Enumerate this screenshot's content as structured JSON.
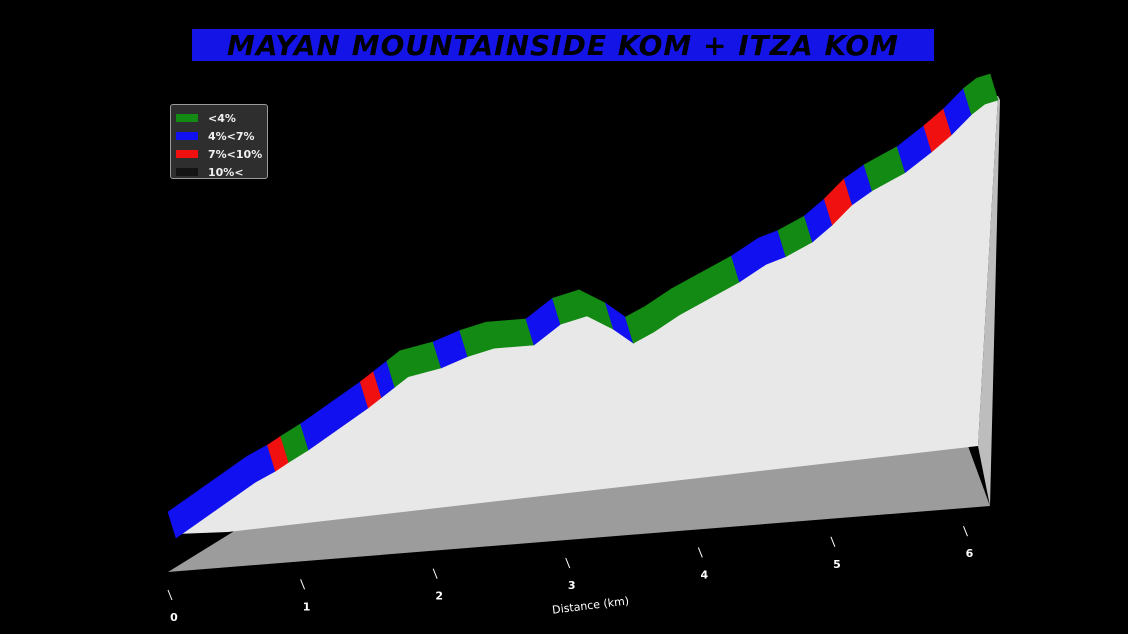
{
  "title": "Mayan Mountainside KOM + Itza KOM",
  "colors": {
    "background": "#000000",
    "title_bg": "#1414e6",
    "lt4": "#138a13",
    "4to7": "#1010f0",
    "7to10": "#f01010",
    "gt10": "#141414",
    "wall": "#e8e8e8"
  },
  "legend": {
    "items": [
      {
        "label": "<4%",
        "color": "#138a13"
      },
      {
        "label": "4%<7%",
        "color": "#1010f0"
      },
      {
        "label": "7%<10%",
        "color": "#f01010"
      },
      {
        "label": "10%<",
        "color": "#141414"
      }
    ]
  },
  "chart_data": {
    "type": "area",
    "title": "Mayan Mountainside KOM + Itza KOM",
    "xlabel": "Distance (km)",
    "ylabel": "",
    "xlim": [
      0,
      6.2
    ],
    "x_ticks": [
      "0",
      "1",
      "2",
      "3",
      "4",
      "5",
      "6"
    ],
    "grade_classes": [
      "<4%",
      "4%<7%",
      "7%<10%",
      "10%<"
    ],
    "profile": [
      {
        "x": 0.0,
        "y": 0,
        "grade": "<4%"
      },
      {
        "x": 0.15,
        "y": 8,
        "grade": "4%<7%"
      },
      {
        "x": 0.3,
        "y": 16,
        "grade": "4%<7%"
      },
      {
        "x": 0.45,
        "y": 24,
        "grade": "4%<7%"
      },
      {
        "x": 0.6,
        "y": 32,
        "grade": "4%<7%"
      },
      {
        "x": 0.75,
        "y": 38,
        "grade": "4%<7%"
      },
      {
        "x": 0.85,
        "y": 43,
        "grade": "7%<10%"
      },
      {
        "x": 1.0,
        "y": 50,
        "grade": "<4%"
      },
      {
        "x": 1.15,
        "y": 58,
        "grade": "4%<7%"
      },
      {
        "x": 1.3,
        "y": 66,
        "grade": "4%<7%"
      },
      {
        "x": 1.45,
        "y": 74,
        "grade": "4%<7%"
      },
      {
        "x": 1.55,
        "y": 80,
        "grade": "7%<10%"
      },
      {
        "x": 1.65,
        "y": 86,
        "grade": "4%<7%"
      },
      {
        "x": 1.75,
        "y": 92,
        "grade": "<4%"
      },
      {
        "x": 2.0,
        "y": 96,
        "grade": "<4%"
      },
      {
        "x": 2.2,
        "y": 102,
        "grade": "4%<7%"
      },
      {
        "x": 2.4,
        "y": 106,
        "grade": "<4%"
      },
      {
        "x": 2.7,
        "y": 106,
        "grade": "<4%"
      },
      {
        "x": 2.9,
        "y": 118,
        "grade": "4%<7%"
      },
      {
        "x": 3.1,
        "y": 122,
        "grade": "<4%"
      },
      {
        "x": 3.3,
        "y": 112,
        "grade": "<4%"
      },
      {
        "x": 3.45,
        "y": 102,
        "grade": "4%<7%"
      },
      {
        "x": 3.6,
        "y": 108,
        "grade": "<4%"
      },
      {
        "x": 3.8,
        "y": 118,
        "grade": "<4%"
      },
      {
        "x": 4.0,
        "y": 126,
        "grade": "<4%"
      },
      {
        "x": 4.25,
        "y": 136,
        "grade": "<4%"
      },
      {
        "x": 4.45,
        "y": 146,
        "grade": "4%<7%"
      },
      {
        "x": 4.6,
        "y": 150,
        "grade": "4%<7%"
      },
      {
        "x": 4.8,
        "y": 158,
        "grade": "<4%"
      },
      {
        "x": 4.95,
        "y": 168,
        "grade": "4%<7%"
      },
      {
        "x": 5.1,
        "y": 180,
        "grade": "7%<10%"
      },
      {
        "x": 5.25,
        "y": 188,
        "grade": "4%<7%"
      },
      {
        "x": 5.5,
        "y": 198,
        "grade": "<4%"
      },
      {
        "x": 5.7,
        "y": 210,
        "grade": "4%<7%"
      },
      {
        "x": 5.85,
        "y": 220,
        "grade": "7%<10%"
      },
      {
        "x": 6.0,
        "y": 232,
        "grade": "4%<7%"
      },
      {
        "x": 6.1,
        "y": 238,
        "grade": "<4%"
      },
      {
        "x": 6.2,
        "y": 240,
        "grade": "<4%"
      }
    ]
  }
}
